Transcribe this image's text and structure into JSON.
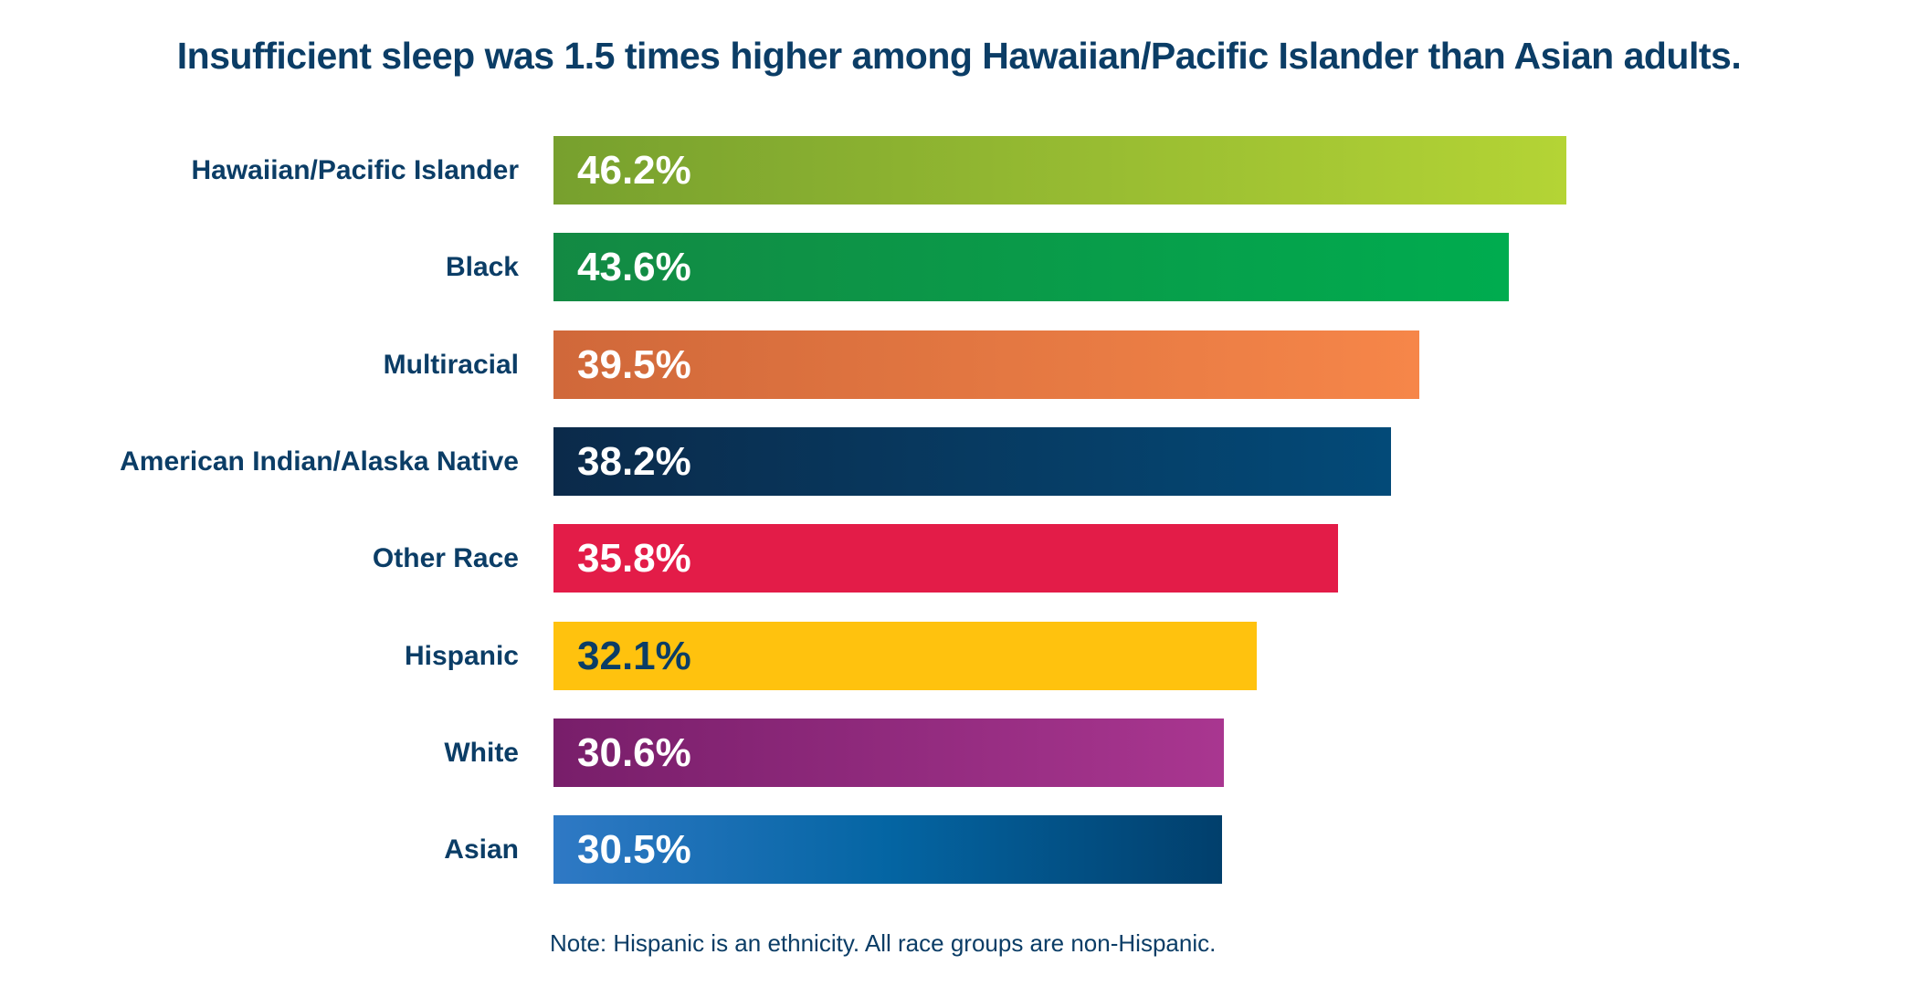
{
  "chart_data": {
    "type": "bar",
    "orientation": "horizontal",
    "title": "Insufficient sleep was 1.5 times higher among Hawaiian/Pacific Islander than Asian adults.",
    "categories": [
      "Hawaiian/Pacific Islander",
      "Black",
      "Multiracial",
      "American Indian/Alaska Native",
      "Other Race",
      "Hispanic",
      "White",
      "Asian"
    ],
    "values": [
      46.2,
      43.6,
      39.5,
      38.2,
      35.8,
      32.1,
      30.6,
      30.5
    ],
    "labels": [
      "46.2%",
      "43.6%",
      "39.5%",
      "38.2%",
      "35.8%",
      "32.1%",
      "30.6%",
      "30.5%"
    ],
    "unit": "%",
    "xlim": [
      0,
      50
    ],
    "grid": false,
    "colors": [
      [
        "#77a02e",
        "#b4d435"
      ],
      [
        "#138943",
        "#00ac4f"
      ],
      [
        "#d0683a",
        "#f68649"
      ],
      [
        "#0b2a4a",
        "#034a78"
      ],
      [
        "#e31c48",
        "#e31c48"
      ],
      [
        "#ffc20e",
        "#ffc20e"
      ],
      [
        "#781e6a",
        "#a93690"
      ],
      [
        "#2f79c5",
        "#0465a3",
        "#013f6c"
      ]
    ],
    "label_colors": [
      "#ffffff",
      "#ffffff",
      "#ffffff",
      "#ffffff",
      "#ffffff",
      "#0b3d66",
      "#ffffff",
      "#ffffff"
    ],
    "note": "Note: Hispanic is an ethnicity. All race groups are non-Hispanic."
  }
}
